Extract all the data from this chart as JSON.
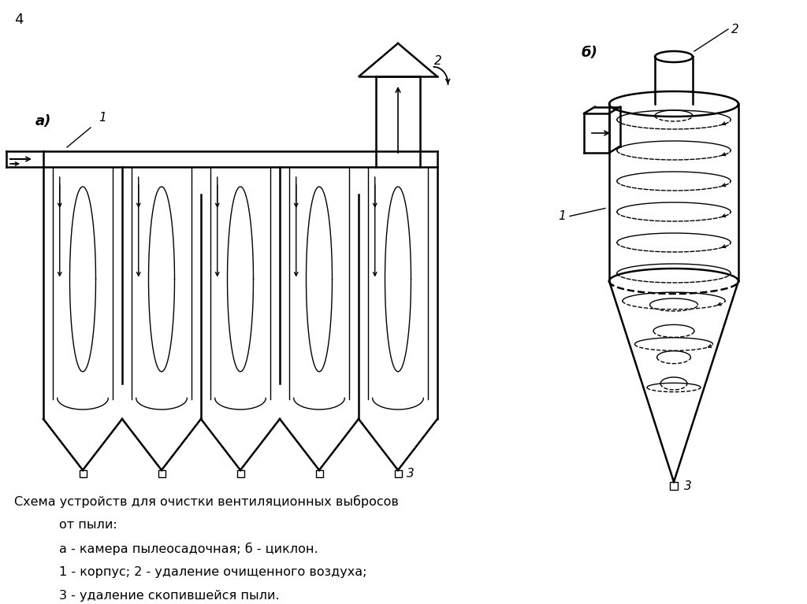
{
  "title_number": "4",
  "label_a": "а)",
  "label_b": "б)",
  "caption_line1": "Схема устройств для очистки вентиляционных выбросов",
  "caption_line2": "от пыли:",
  "caption_line3": "а - камера пылеосадочная; б - циклон.",
  "caption_line4": "1 - корпус; 2 - удаление очищенного воздуха;",
  "caption_line5": "3 - удаление скопившейся пыли.",
  "bg_color": "#ffffff",
  "line_color": "#000000"
}
